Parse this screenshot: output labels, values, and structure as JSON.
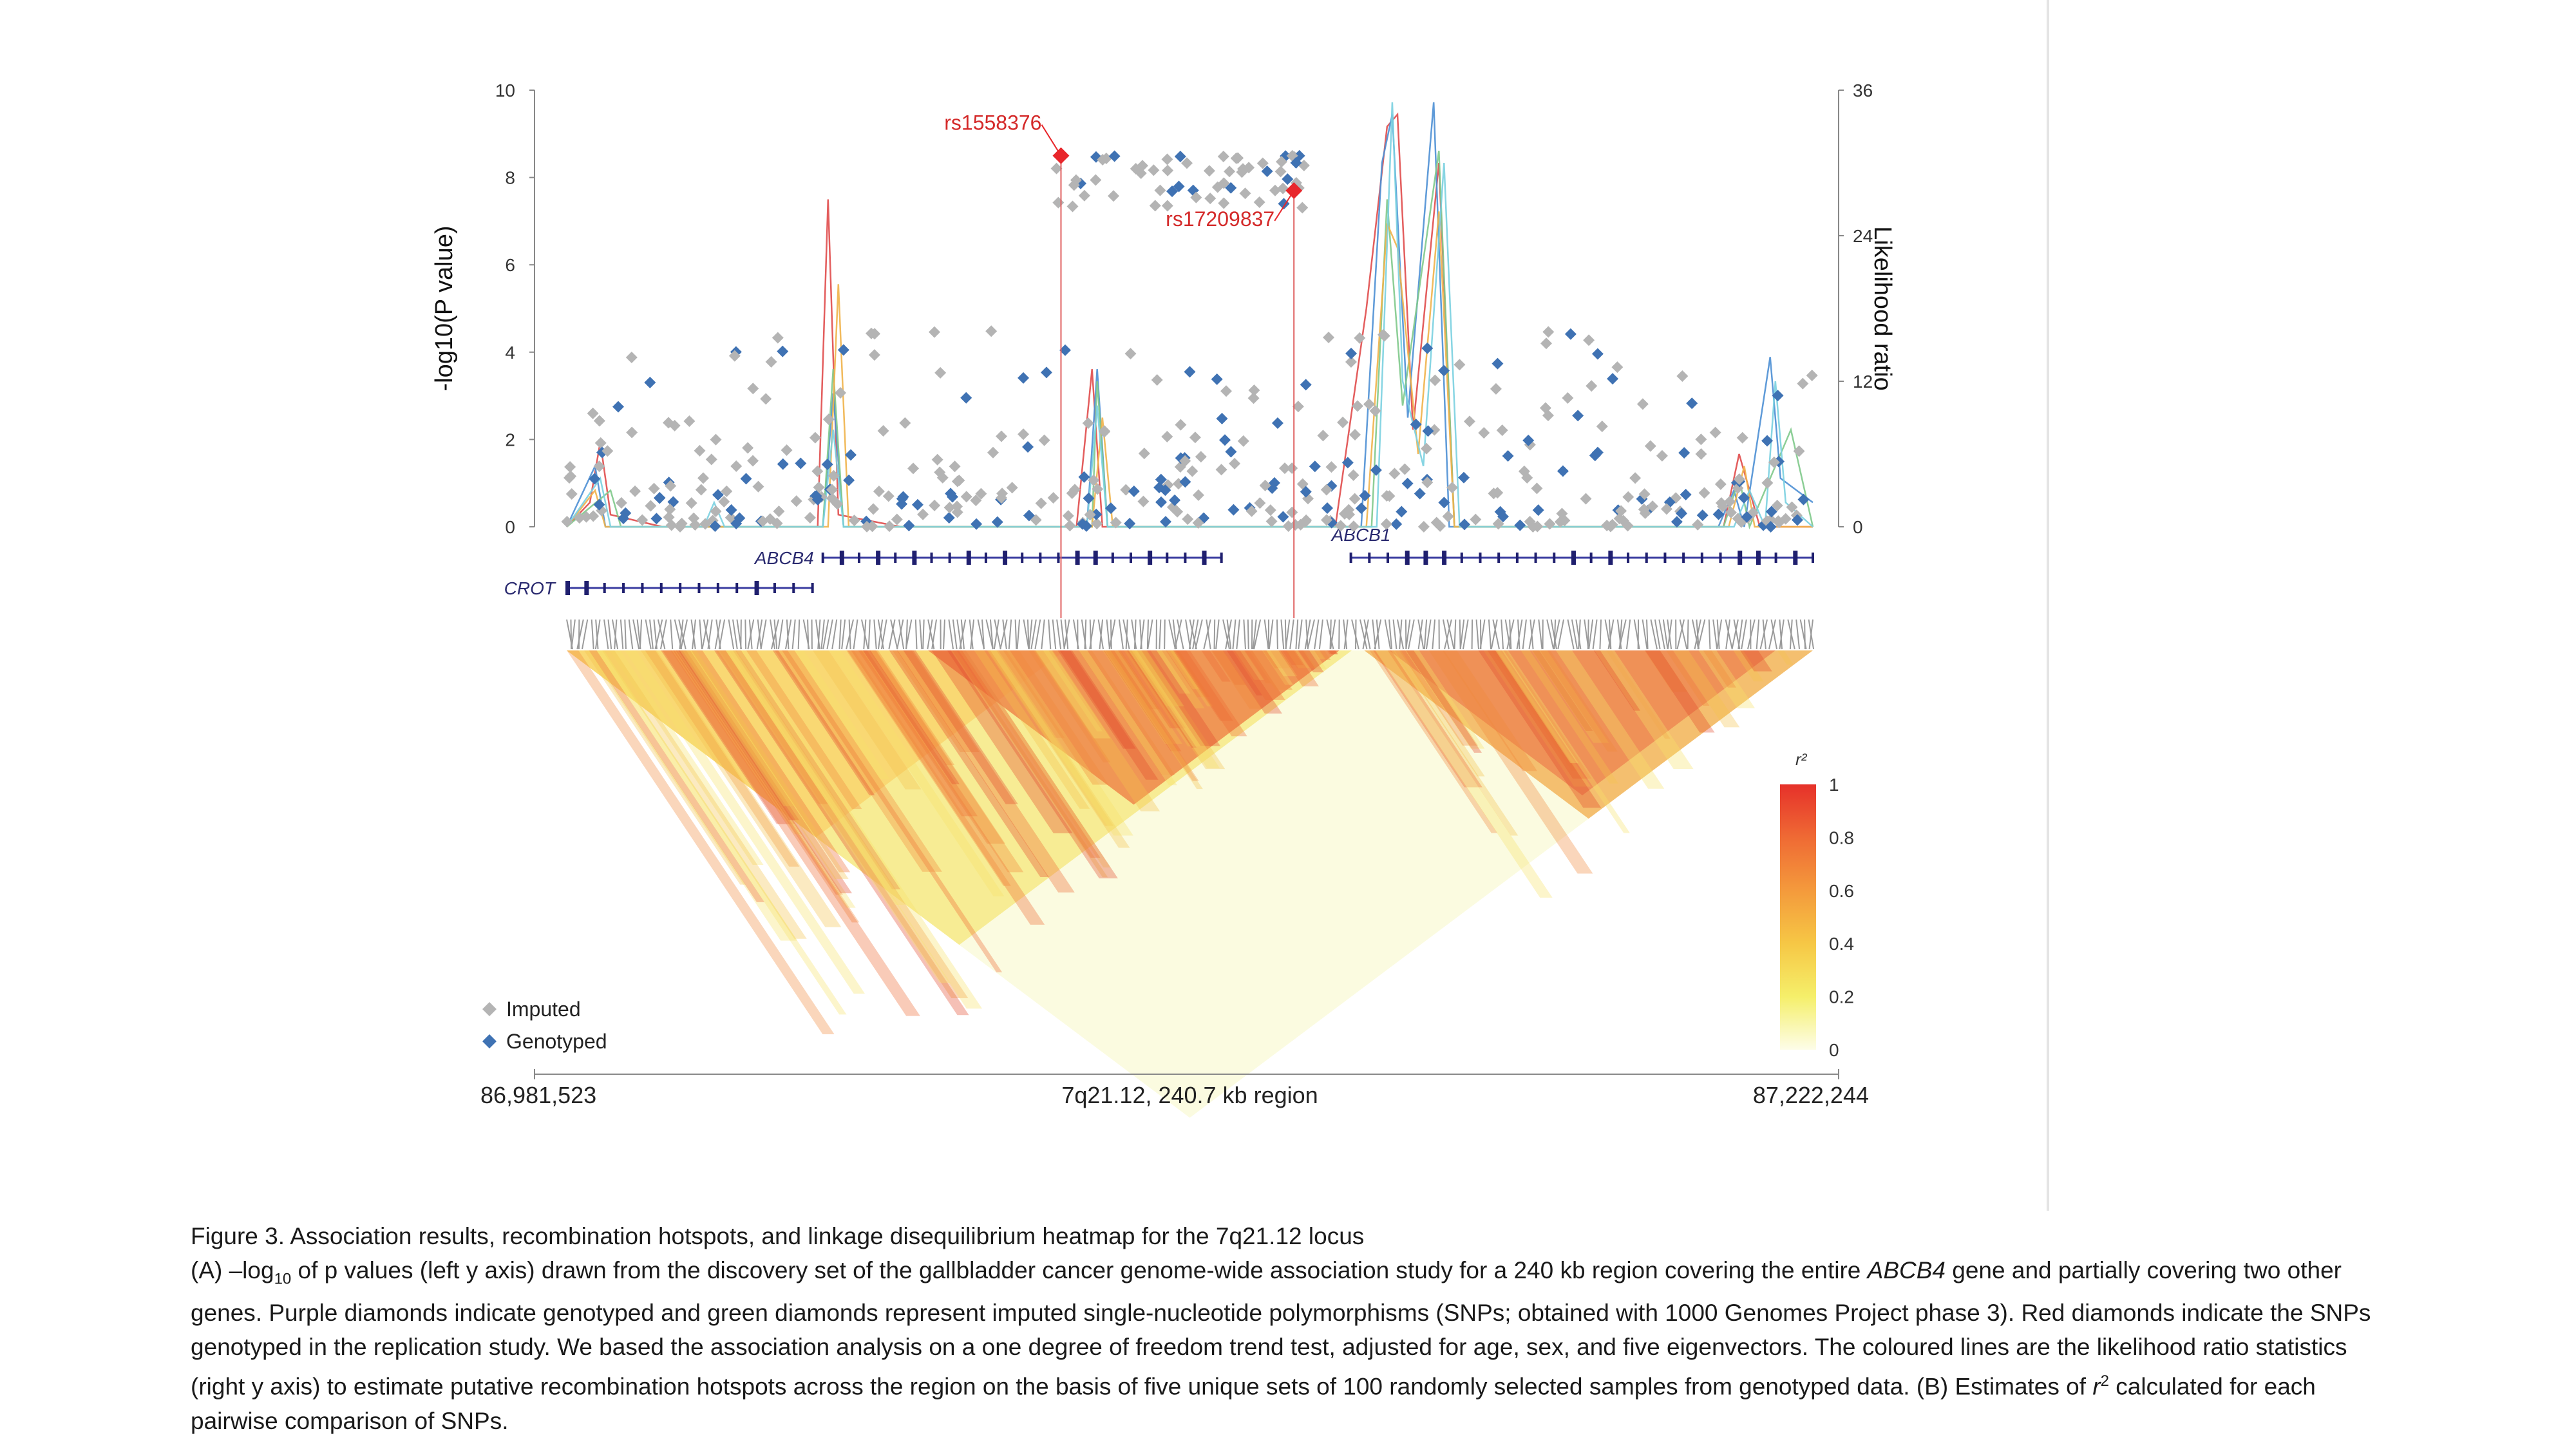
{
  "chart_data": {
    "type": "scatter",
    "left_axis": {
      "label": "-log10(P value)",
      "ticks": [
        "0",
        "2",
        "4",
        "6",
        "8",
        "10"
      ],
      "ylim": [
        0,
        10
      ]
    },
    "right_axis": {
      "label": "Likelihood ratio",
      "ticks": [
        "0",
        "12",
        "24",
        "36"
      ],
      "ylim": [
        0,
        36
      ]
    },
    "region": {
      "start_label": "86,981,523",
      "end_label": "87,222,244",
      "center_label": "7q21.12,  240.7 kb region",
      "start": 86981523,
      "end": 87222244
    },
    "legend": [
      {
        "label": "Imputed",
        "color": "#b4b4b4"
      },
      {
        "label": "Genotyped",
        "color": "#3f72b3"
      }
    ],
    "highlighted_snps": [
      {
        "name": "rs1558376",
        "x": 87077000,
        "y": 8.5,
        "color": "#e8262b"
      },
      {
        "name": "rs17209837",
        "x": 87122000,
        "y": 7.7,
        "color": "#e8262b"
      }
    ],
    "genes": [
      {
        "name": "ABCB4",
        "start": 87031000,
        "end": 87108000,
        "track": 1
      },
      {
        "name": "CROT",
        "start": 86981523,
        "end": 87029000,
        "track": 2
      },
      {
        "name": "ABCB1",
        "start": 87133000,
        "end": 87222244,
        "track": 1
      }
    ],
    "likelihood_series": [
      {
        "name": "",
        "color": "#e04b4b",
        "points": [
          [
            86981523,
            0
          ],
          [
            86986000,
            2
          ],
          [
            86988000,
            7
          ],
          [
            86990000,
            1
          ],
          [
            87000000,
            0
          ],
          [
            87030000,
            0
          ],
          [
            87032000,
            27
          ],
          [
            87034000,
            1
          ],
          [
            87046000,
            0
          ],
          [
            87080000,
            0
          ],
          [
            87083000,
            13
          ],
          [
            87085000,
            0
          ],
          [
            87130000,
            0
          ],
          [
            87136000,
            18
          ],
          [
            87140000,
            33
          ],
          [
            87142000,
            34
          ],
          [
            87145000,
            8
          ],
          [
            87150000,
            30
          ],
          [
            87153000,
            0
          ],
          [
            87205000,
            0
          ],
          [
            87208000,
            6
          ],
          [
            87212000,
            0
          ],
          [
            87222244,
            0
          ]
        ]
      },
      {
        "name": "",
        "color": "#4d8fd4",
        "points": [
          [
            86981523,
            0
          ],
          [
            86987000,
            5
          ],
          [
            86989000,
            0
          ],
          [
            87031000,
            0
          ],
          [
            87033000,
            11
          ],
          [
            87035000,
            0
          ],
          [
            87082000,
            0
          ],
          [
            87084000,
            13
          ],
          [
            87086000,
            0
          ],
          [
            87135000,
            0
          ],
          [
            87139000,
            30
          ],
          [
            87141000,
            34
          ],
          [
            87144000,
            9
          ],
          [
            87149000,
            35
          ],
          [
            87152000,
            0
          ],
          [
            87204000,
            0
          ],
          [
            87207000,
            3
          ],
          [
            87209000,
            0
          ],
          [
            87214000,
            14
          ],
          [
            87216000,
            4
          ],
          [
            87222244,
            2
          ]
        ]
      },
      {
        "name": "",
        "color": "#7fc98b",
        "points": [
          [
            86981523,
            0
          ],
          [
            86990000,
            3
          ],
          [
            86992000,
            0
          ],
          [
            87031000,
            0
          ],
          [
            87033000,
            13
          ],
          [
            87035000,
            0
          ],
          [
            87083000,
            0
          ],
          [
            87084000,
            12
          ],
          [
            87086000,
            0
          ],
          [
            87137000,
            0
          ],
          [
            87140000,
            27
          ],
          [
            87143000,
            10
          ],
          [
            87150000,
            31
          ],
          [
            87153000,
            0
          ],
          [
            87205000,
            0
          ],
          [
            87208000,
            4
          ],
          [
            87210000,
            0
          ],
          [
            87218000,
            8
          ],
          [
            87222244,
            0
          ]
        ]
      },
      {
        "name": "",
        "color": "#f0b24a",
        "points": [
          [
            86981523,
            0
          ],
          [
            86987000,
            3
          ],
          [
            86989000,
            0
          ],
          [
            87032000,
            0
          ],
          [
            87034000,
            20
          ],
          [
            87036000,
            0
          ],
          [
            87083000,
            0
          ],
          [
            87085000,
            9
          ],
          [
            87087000,
            0
          ],
          [
            87136000,
            0
          ],
          [
            87140000,
            25
          ],
          [
            87142000,
            23
          ],
          [
            87146000,
            6
          ],
          [
            87150000,
            26
          ],
          [
            87153000,
            0
          ],
          [
            87206000,
            0
          ],
          [
            87209000,
            5
          ],
          [
            87211000,
            0
          ],
          [
            87222244,
            0
          ]
        ]
      },
      {
        "name": "",
        "color": "#7ad0e0",
        "points": [
          [
            86981523,
            0
          ],
          [
            86988000,
            4
          ],
          [
            86990000,
            0
          ],
          [
            87008000,
            0
          ],
          [
            87010000,
            2
          ],
          [
            87012000,
            0
          ],
          [
            87031000,
            0
          ],
          [
            87033000,
            8
          ],
          [
            87035000,
            0
          ],
          [
            87082000,
            0
          ],
          [
            87084000,
            10
          ],
          [
            87086000,
            0
          ],
          [
            87138000,
            0
          ],
          [
            87141000,
            35
          ],
          [
            87143000,
            12
          ],
          [
            87147000,
            5
          ],
          [
            87151000,
            30
          ],
          [
            87154000,
            0
          ],
          [
            87207000,
            0
          ],
          [
            87210000,
            3
          ],
          [
            87213000,
            0
          ],
          [
            87215000,
            12
          ],
          [
            87217000,
            2
          ],
          [
            87222244,
            0
          ]
        ]
      }
    ],
    "r2_colorbar": {
      "title": "r²",
      "ticks": [
        "0",
        "0.2",
        "0.4",
        "0.6",
        "0.8",
        "1"
      ]
    }
  },
  "caption": {
    "title": "Figure 3. Association results, recombination hotspots, and linkage disequilibrium heatmap for the 7q21.12 locus",
    "body_a1": "(A) –log",
    "body_a_sub": "10",
    "body_a2": " of p values (left y axis) drawn from the discovery set of the gallbladder cancer genome-wide association study for a 240 kb region covering the entire ",
    "body_gene": "ABCB4",
    "body_a3": " gene and partially covering two other genes. Purple diamonds indicate genotyped and green diamonds represent imputed single-nucleotide polymorphisms (SNPs; obtained with 1000 Genomes Project phase 3). Red diamonds indicate the SNPs genotyped in the replication study. We based the association analysis on a one degree of freedom trend test, adjusted for age, sex, and five eigenvectors. The coloured lines are the likelihood ratio statistics (right y axis) to estimate putative recombination hotspots across the region on the basis of five unique sets of 100 randomly selected samples from genotyped data. (B) Estimates of ",
    "body_r": "r",
    "body_sup": "2",
    "body_a4": " calculated for each pairwise comparison of SNPs."
  }
}
